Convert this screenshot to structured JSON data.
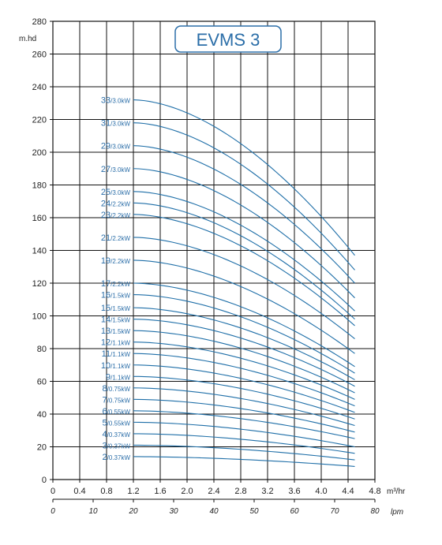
{
  "colors": {
    "curve": "#1f6fa8",
    "label": "#2b6ea8",
    "grid": "#111111",
    "title_border": "#2b6ea8"
  },
  "chart_data": {
    "type": "line",
    "title": "EVMS 3",
    "ylabel": "m.hd",
    "xlabel": "m³/hr",
    "x2label": "lpm",
    "xlim": [
      0,
      4.8
    ],
    "ylim": [
      0,
      280
    ],
    "x_ticks": [
      "0",
      "0.4",
      "0.8",
      "1.2",
      "1.6",
      "2.0",
      "2.4",
      "2.8",
      "3.2",
      "3.6",
      "4.0",
      "4.4",
      "4.8"
    ],
    "y_ticks": [
      "0",
      "20",
      "40",
      "60",
      "80",
      "100",
      "120",
      "140",
      "160",
      "180",
      "200",
      "220",
      "240",
      "260",
      "280"
    ],
    "x2_ticks": [
      "0",
      "10",
      "20",
      "30",
      "40",
      "50",
      "60",
      "70",
      "80"
    ],
    "curve_x_range": [
      1.2,
      4.5
    ],
    "series": [
      {
        "stages": "33",
        "power": "/3.0kW",
        "shutoff": 232,
        "end": 137
      },
      {
        "stages": "31",
        "power": "/3.0kW",
        "shutoff": 218,
        "end": 128
      },
      {
        "stages": "29",
        "power": "/3.0kW",
        "shutoff": 204,
        "end": 120
      },
      {
        "stages": "27",
        "power": "/3.0kW",
        "shutoff": 190,
        "end": 111
      },
      {
        "stages": "25",
        "power": "/3.0kW",
        "shutoff": 176,
        "end": 103
      },
      {
        "stages": "24",
        "power": "/2.2kW",
        "shutoff": 169,
        "end": 98
      },
      {
        "stages": "23",
        "power": "/2.2kW",
        "shutoff": 162,
        "end": 94
      },
      {
        "stages": "21",
        "power": "/2.2kW",
        "shutoff": 148,
        "end": 86
      },
      {
        "stages": "19",
        "power": "/2.2kW",
        "shutoff": 134,
        "end": 77
      },
      {
        "stages": "17",
        "power": "/2.2kW",
        "shutoff": 120,
        "end": 69
      },
      {
        "stages": "16",
        "power": "/1.5kW",
        "shutoff": 113,
        "end": 65
      },
      {
        "stages": "15",
        "power": "/1.5kW",
        "shutoff": 105,
        "end": 61
      },
      {
        "stages": "14",
        "power": "/1.5kW",
        "shutoff": 98,
        "end": 57
      },
      {
        "stages": "13",
        "power": "/1.5kW",
        "shutoff": 91,
        "end": 53
      },
      {
        "stages": "12",
        "power": "/1.1kW",
        "shutoff": 84,
        "end": 49
      },
      {
        "stages": "11",
        "power": "/1.1kW",
        "shutoff": 77,
        "end": 45
      },
      {
        "stages": "10",
        "power": "/1.1kW",
        "shutoff": 70,
        "end": 41
      },
      {
        "stages": "9",
        "power": "/1.1kW",
        "shutoff": 63,
        "end": 37
      },
      {
        "stages": "8",
        "power": "/0.75kW",
        "shutoff": 56,
        "end": 33
      },
      {
        "stages": "7",
        "power": "/0.75kW",
        "shutoff": 49,
        "end": 29
      },
      {
        "stages": "6",
        "power": "/0.55kW",
        "shutoff": 42,
        "end": 25
      },
      {
        "stages": "5",
        "power": "/0.55kW",
        "shutoff": 35,
        "end": 20
      },
      {
        "stages": "4",
        "power": "/0.37kW",
        "shutoff": 28,
        "end": 16
      },
      {
        "stages": "3",
        "power": "/0.37kW",
        "shutoff": 21,
        "end": 12
      },
      {
        "stages": "2",
        "power": "/0.37kW",
        "shutoff": 14,
        "end": 8
      }
    ]
  }
}
